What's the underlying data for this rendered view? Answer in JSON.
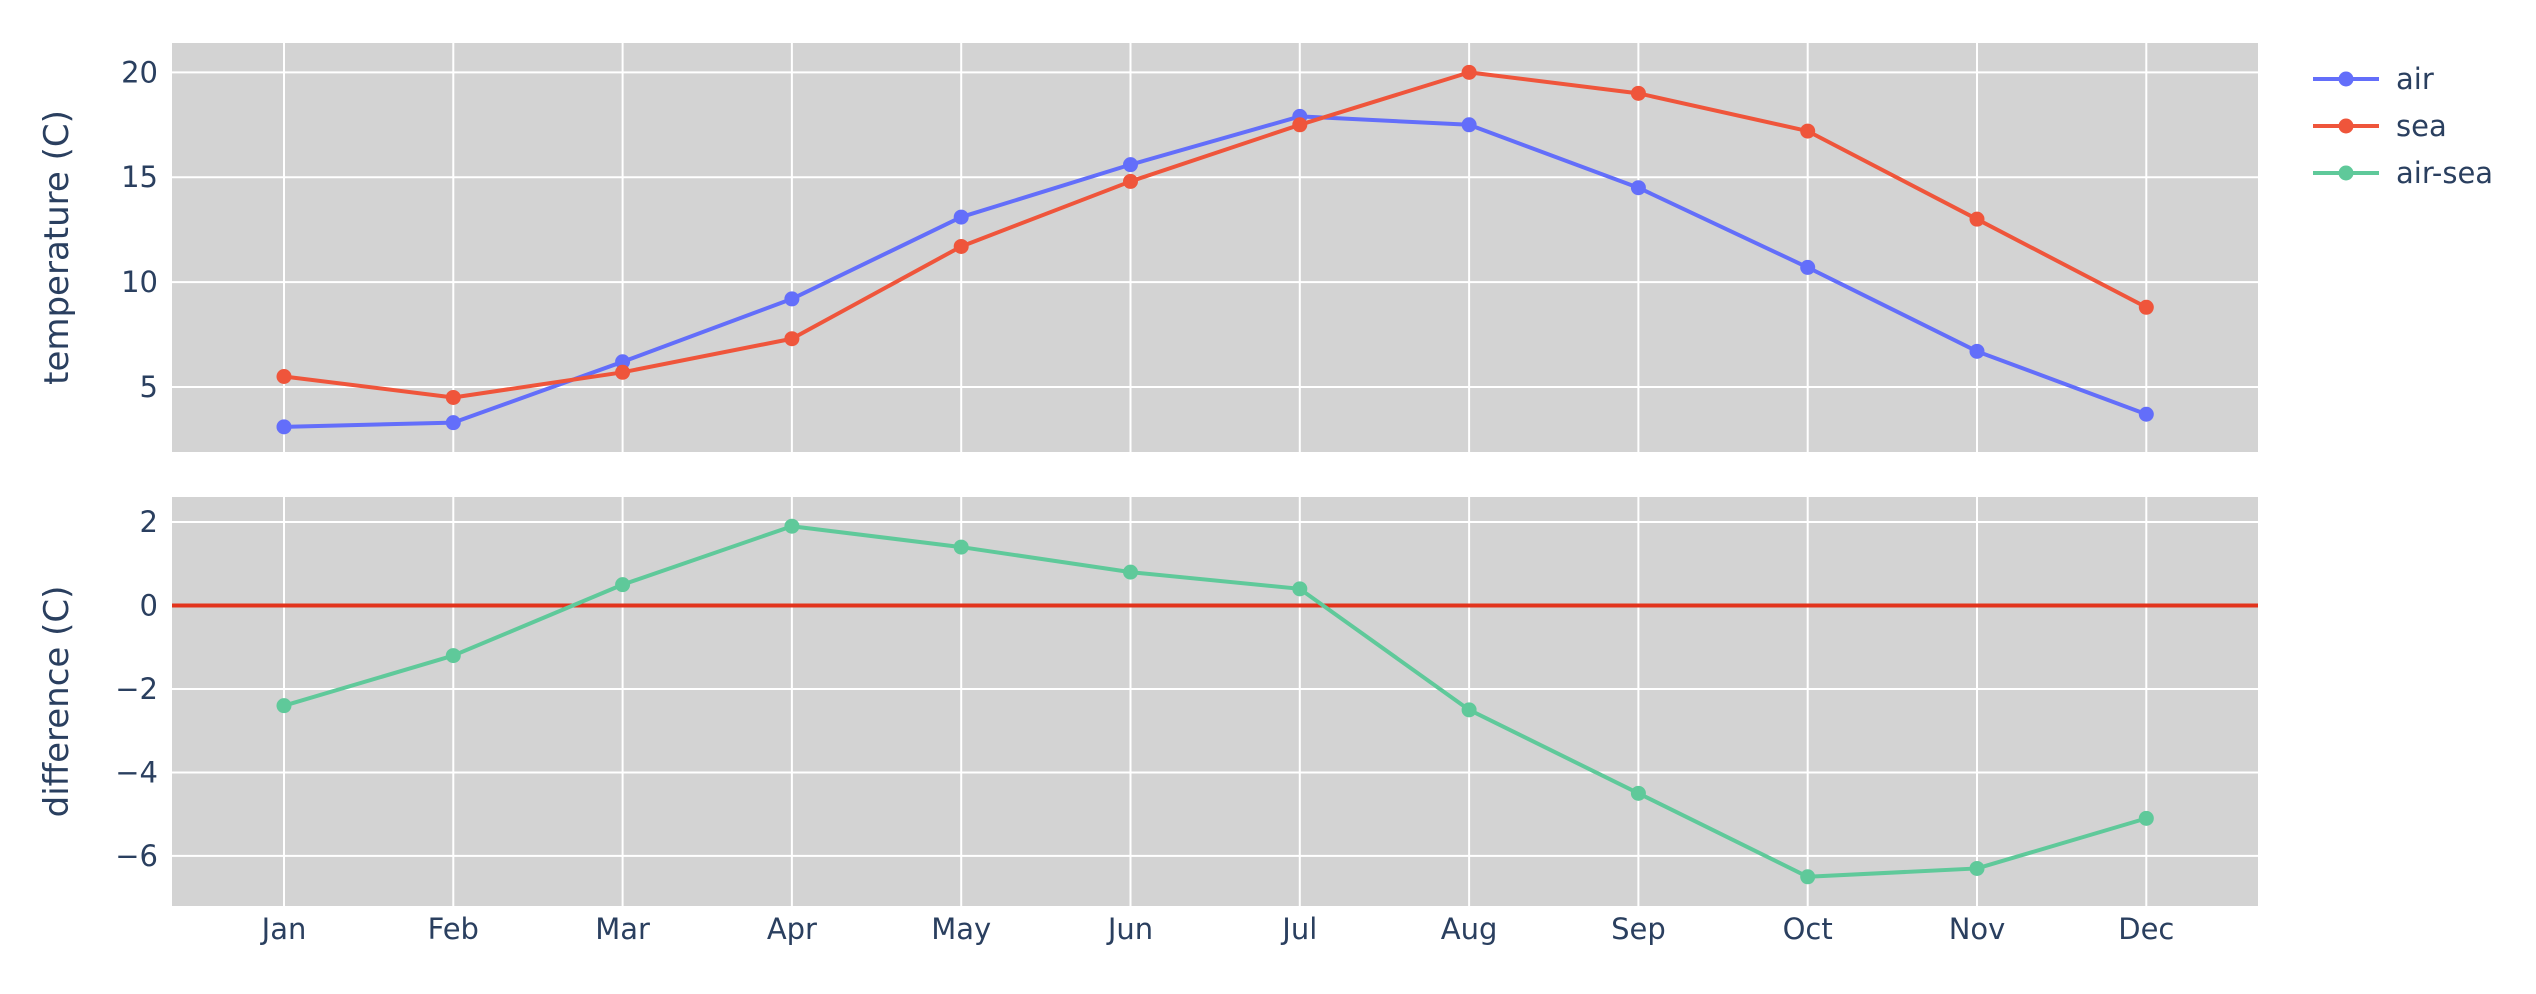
{
  "chart_data": [
    {
      "type": "line",
      "categories": [
        "Jan",
        "Feb",
        "Mar",
        "Apr",
        "May",
        "Jun",
        "Jul",
        "Aug",
        "Sep",
        "Oct",
        "Nov",
        "Dec"
      ],
      "ylabel": "temperature (C)",
      "ylim": [
        1.9,
        21.4
      ],
      "yticks": [
        5,
        10,
        15,
        20
      ],
      "ytick_labels": [
        "5",
        "10",
        "15",
        "20"
      ],
      "grid": true,
      "series": [
        {
          "name": "air",
          "color": "#636efa",
          "values": [
            3.1,
            3.3,
            6.2,
            9.2,
            13.1,
            15.6,
            17.9,
            17.5,
            14.5,
            10.7,
            6.7,
            3.7
          ]
        },
        {
          "name": "sea",
          "color": "#ef553b",
          "values": [
            5.5,
            4.5,
            5.7,
            7.3,
            11.7,
            14.8,
            17.5,
            20.0,
            19.0,
            17.2,
            13.0,
            8.8
          ]
        }
      ]
    },
    {
      "type": "line",
      "categories": [
        "Jan",
        "Feb",
        "Mar",
        "Apr",
        "May",
        "Jun",
        "Jul",
        "Aug",
        "Sep",
        "Oct",
        "Nov",
        "Dec"
      ],
      "ylabel": "difference (C)",
      "ylim": [
        -7.2,
        2.6
      ],
      "yticks": [
        -6,
        -4,
        -2,
        0,
        2
      ],
      "ytick_labels": [
        "−6",
        "−4",
        "−2",
        "0",
        "2"
      ],
      "grid": true,
      "reference_line": {
        "y": 0,
        "color": "#e2341d"
      },
      "series": [
        {
          "name": "air-sea",
          "color": "#5fc99a",
          "values": [
            -2.4,
            -1.2,
            0.5,
            1.9,
            1.4,
            0.8,
            0.4,
            -2.5,
            -4.5,
            -6.5,
            -6.3,
            -5.1
          ]
        }
      ]
    }
  ],
  "legend": {
    "placement": "top-right",
    "items": [
      {
        "label": "air",
        "color": "#636efa"
      },
      {
        "label": "sea",
        "color": "#ef553b"
      },
      {
        "label": "air-sea",
        "color": "#5fc99a"
      }
    ]
  },
  "colors": {
    "plot_background": "#d3d3d3",
    "grid": "#ffffff",
    "text": "#2a3f5f"
  }
}
